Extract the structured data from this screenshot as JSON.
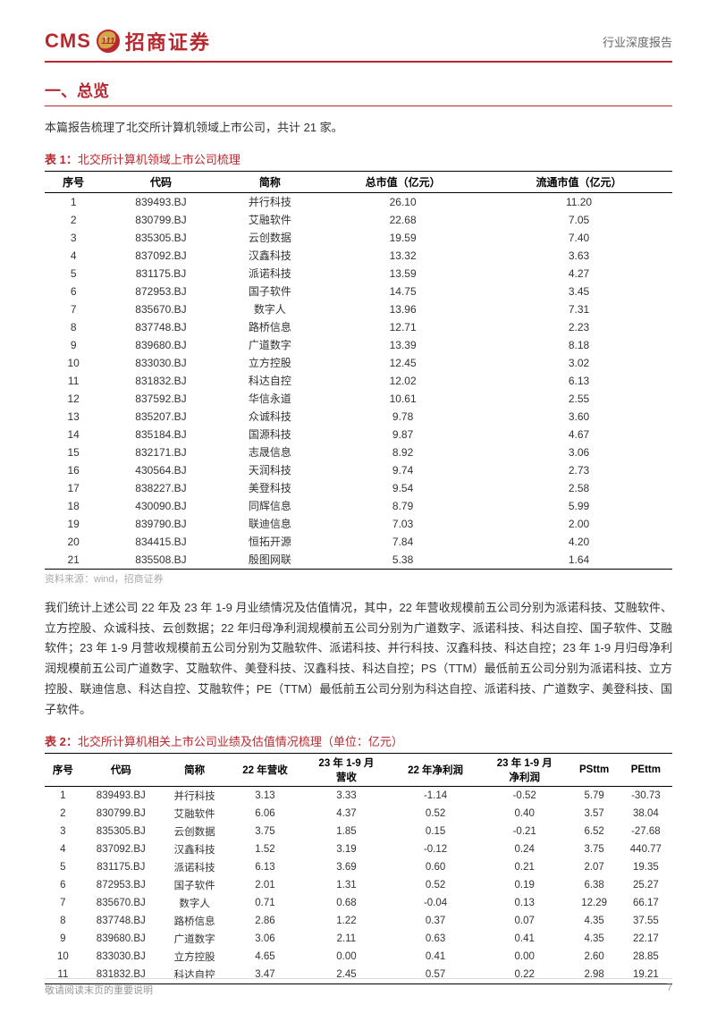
{
  "header": {
    "logo_en": "CMS",
    "logo_badge": "111",
    "logo_cn": "招商证券",
    "right_text": "行业深度报告"
  },
  "section_title": "一、总览",
  "intro": "本篇报告梳理了北交所计算机领域上市公司，共计 21 家。",
  "table1": {
    "caption_prefix": "表 1：",
    "caption_text": "北交所计算机领域上市公司梳理",
    "columns": [
      "序号",
      "代码",
      "简称",
      "总市值（亿元）",
      "流通市值（亿元）"
    ],
    "rows": [
      [
        "1",
        "839493.BJ",
        "并行科技",
        "26.10",
        "11.20"
      ],
      [
        "2",
        "830799.BJ",
        "艾融软件",
        "22.68",
        "7.05"
      ],
      [
        "3",
        "835305.BJ",
        "云创数据",
        "19.59",
        "7.40"
      ],
      [
        "4",
        "837092.BJ",
        "汉鑫科技",
        "13.32",
        "3.63"
      ],
      [
        "5",
        "831175.BJ",
        "派诺科技",
        "13.59",
        "4.27"
      ],
      [
        "6",
        "872953.BJ",
        "国子软件",
        "14.75",
        "3.45"
      ],
      [
        "7",
        "835670.BJ",
        "数字人",
        "13.96",
        "7.31"
      ],
      [
        "8",
        "837748.BJ",
        "路桥信息",
        "12.71",
        "2.23"
      ],
      [
        "9",
        "839680.BJ",
        "广道数字",
        "13.39",
        "8.18"
      ],
      [
        "10",
        "833030.BJ",
        "立方控股",
        "12.45",
        "3.02"
      ],
      [
        "11",
        "831832.BJ",
        "科达自控",
        "12.02",
        "6.13"
      ],
      [
        "12",
        "837592.BJ",
        "华信永道",
        "10.61",
        "2.55"
      ],
      [
        "13",
        "835207.BJ",
        "众诚科技",
        "9.78",
        "3.60"
      ],
      [
        "14",
        "835184.BJ",
        "国源科技",
        "9.87",
        "4.67"
      ],
      [
        "15",
        "832171.BJ",
        "志晟信息",
        "8.92",
        "3.06"
      ],
      [
        "16",
        "430564.BJ",
        "天润科技",
        "9.74",
        "2.73"
      ],
      [
        "17",
        "838227.BJ",
        "美登科技",
        "9.54",
        "2.58"
      ],
      [
        "18",
        "430090.BJ",
        "同辉信息",
        "8.79",
        "5.99"
      ],
      [
        "19",
        "839790.BJ",
        "联迪信息",
        "7.03",
        "2.00"
      ],
      [
        "20",
        "834415.BJ",
        "恒拓开源",
        "7.84",
        "4.20"
      ],
      [
        "21",
        "835508.BJ",
        "殷图网联",
        "5.38",
        "1.64"
      ]
    ],
    "source": "资料来源：wind，招商证券"
  },
  "paragraph": "我们统计上述公司 22 年及 23 年 1-9 月业绩情况及估值情况，其中，22 年营收规模前五公司分别为派诺科技、艾融软件、立方控股、众诚科技、云创数据；22 年归母净利润规模前五公司分别为广道数字、派诺科技、科达自控、国子软件、艾融软件；23 年 1-9 月营收规模前五公司分别为艾融软件、派诺科技、并行科技、汉鑫科技、科达自控；23 年 1-9 月归母净利润规模前五公司广道数字、艾融软件、美登科技、汉鑫科技、科达自控；PS（TTM）最低前五公司分别为派诺科技、立方控股、联迪信息、科达自控、艾融软件；PE（TTM）最低前五公司分别为科达自控、派诺科技、广道数字、美登科技、国子软件。",
  "table2": {
    "caption_prefix": "表 2：",
    "caption_text": "北交所计算机相关上市公司业绩及估值情况梳理（单位：亿元）",
    "columns": [
      "序号",
      "代码",
      "简称",
      "22 年营收",
      "23 年 1-9 月\n营收",
      "22 年净利润",
      "23 年 1-9 月\n净利润",
      "PSttm",
      "PEttm"
    ],
    "rows": [
      [
        "1",
        "839493.BJ",
        "并行科技",
        "3.13",
        "3.33",
        "-1.14",
        "-0.52",
        "5.79",
        "-30.73"
      ],
      [
        "2",
        "830799.BJ",
        "艾融软件",
        "6.06",
        "4.37",
        "0.52",
        "0.40",
        "3.57",
        "38.04"
      ],
      [
        "3",
        "835305.BJ",
        "云创数据",
        "3.75",
        "1.85",
        "0.15",
        "-0.21",
        "6.52",
        "-27.68"
      ],
      [
        "4",
        "837092.BJ",
        "汉鑫科技",
        "1.52",
        "3.19",
        "-0.12",
        "0.24",
        "3.75",
        "440.77"
      ],
      [
        "5",
        "831175.BJ",
        "派诺科技",
        "6.13",
        "3.69",
        "0.60",
        "0.21",
        "2.07",
        "19.35"
      ],
      [
        "6",
        "872953.BJ",
        "国子软件",
        "2.01",
        "1.31",
        "0.52",
        "0.19",
        "6.38",
        "25.27"
      ],
      [
        "7",
        "835670.BJ",
        "数字人",
        "0.71",
        "0.68",
        "-0.04",
        "0.13",
        "12.29",
        "66.17"
      ],
      [
        "8",
        "837748.BJ",
        "路桥信息",
        "2.86",
        "1.22",
        "0.37",
        "0.07",
        "4.35",
        "37.55"
      ],
      [
        "9",
        "839680.BJ",
        "广道数字",
        "3.06",
        "2.11",
        "0.63",
        "0.41",
        "4.35",
        "22.17"
      ],
      [
        "10",
        "833030.BJ",
        "立方控股",
        "4.65",
        "0.00",
        "0.41",
        "0.00",
        "2.60",
        "28.85"
      ],
      [
        "11",
        "831832.BJ",
        "科达自控",
        "3.47",
        "2.45",
        "0.57",
        "0.22",
        "2.98",
        "19.21"
      ]
    ]
  },
  "footer": {
    "left": "敬请阅读末页的重要说明",
    "page": "7"
  },
  "colors": {
    "brand": "#b8292f",
    "text": "#333333",
    "muted": "#aaaaaa",
    "bg": "#ffffff"
  }
}
